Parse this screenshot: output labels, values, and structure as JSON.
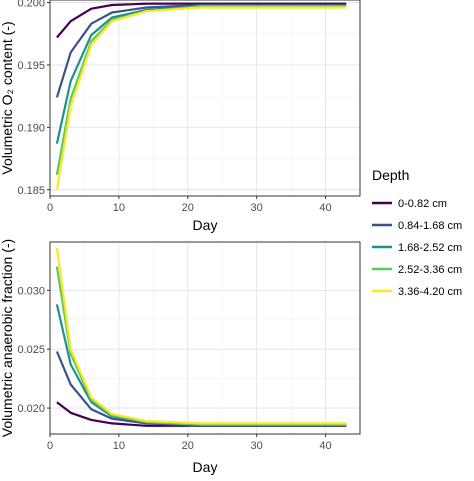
{
  "legend": {
    "title": "Depth",
    "items": [
      "0-0.82 cm",
      "0.84-1.68 cm",
      "1.68-2.52 cm",
      "2.52-3.36 cm",
      "3.36-4.20 cm"
    ],
    "colors": [
      "#440154",
      "#3b528b",
      "#21908c",
      "#5dc863",
      "#fde725"
    ],
    "placement": "right"
  },
  "chart_data": [
    {
      "type": "line",
      "title": "",
      "xlabel": "Day",
      "ylabel": "Volumetric O₂ content (-)",
      "xlim": [
        0,
        45
      ],
      "ylim": [
        0.1845,
        0.2002
      ],
      "xticks": [
        0,
        10,
        20,
        30,
        40
      ],
      "xtick_labels": [
        "0",
        "10",
        "20",
        "30",
        "40"
      ],
      "yticks": [
        0.185,
        0.19,
        0.195,
        0.2
      ],
      "ytick_labels": [
        "0.185",
        "0.190",
        "0.195",
        "0.200"
      ],
      "grid": true,
      "x": [
        1,
        3,
        6,
        9,
        14,
        22,
        43
      ],
      "series": [
        {
          "name": "0-0.82 cm",
          "values": [
            0.1972,
            0.1985,
            0.1995,
            0.1998,
            0.1999,
            0.1999,
            0.1999
          ]
        },
        {
          "name": "0.84-1.68 cm",
          "values": [
            0.1924,
            0.196,
            0.1983,
            0.1992,
            0.1996,
            0.1998,
            0.1998
          ]
        },
        {
          "name": "1.68-2.52 cm",
          "values": [
            0.1887,
            0.1937,
            0.1974,
            0.1988,
            0.1994,
            0.1997,
            0.1997
          ]
        },
        {
          "name": "2.52-3.36 cm",
          "values": [
            0.1862,
            0.1923,
            0.1969,
            0.1986,
            0.1993,
            0.1997,
            0.1997
          ]
        },
        {
          "name": "3.36-4.20 cm",
          "values": [
            0.185,
            0.1917,
            0.1966,
            0.1985,
            0.1993,
            0.1996,
            0.1996
          ]
        }
      ]
    },
    {
      "type": "line",
      "title": "",
      "xlabel": "Day",
      "ylabel": "Volumetric anaerobic fraction (-)",
      "xlim": [
        0,
        45
      ],
      "ylim": [
        0.0178,
        0.0341
      ],
      "xticks": [
        0,
        10,
        20,
        30,
        40
      ],
      "xtick_labels": [
        "0",
        "10",
        "20",
        "30",
        "40"
      ],
      "yticks": [
        0.02,
        0.025,
        0.03
      ],
      "ytick_labels": [
        "0.020",
        "0.025",
        "0.030"
      ],
      "grid": true,
      "x": [
        1,
        3,
        6,
        9,
        14,
        22,
        43
      ],
      "series": [
        {
          "name": "0-0.82 cm",
          "values": [
            0.0205,
            0.0196,
            0.019,
            0.0187,
            0.0185,
            0.0185,
            0.0185
          ]
        },
        {
          "name": "0.84-1.68 cm",
          "values": [
            0.0248,
            0.022,
            0.0199,
            0.0191,
            0.0187,
            0.0185,
            0.0185
          ]
        },
        {
          "name": "1.68-2.52 cm",
          "values": [
            0.0288,
            0.0237,
            0.0205,
            0.0193,
            0.0188,
            0.0186,
            0.0186
          ]
        },
        {
          "name": "2.52-3.36 cm",
          "values": [
            0.032,
            0.0246,
            0.0207,
            0.0194,
            0.0188,
            0.0186,
            0.0186
          ]
        },
        {
          "name": "3.36-4.20 cm",
          "values": [
            0.0336,
            0.025,
            0.0209,
            0.0195,
            0.0189,
            0.0187,
            0.0187
          ]
        }
      ]
    }
  ]
}
